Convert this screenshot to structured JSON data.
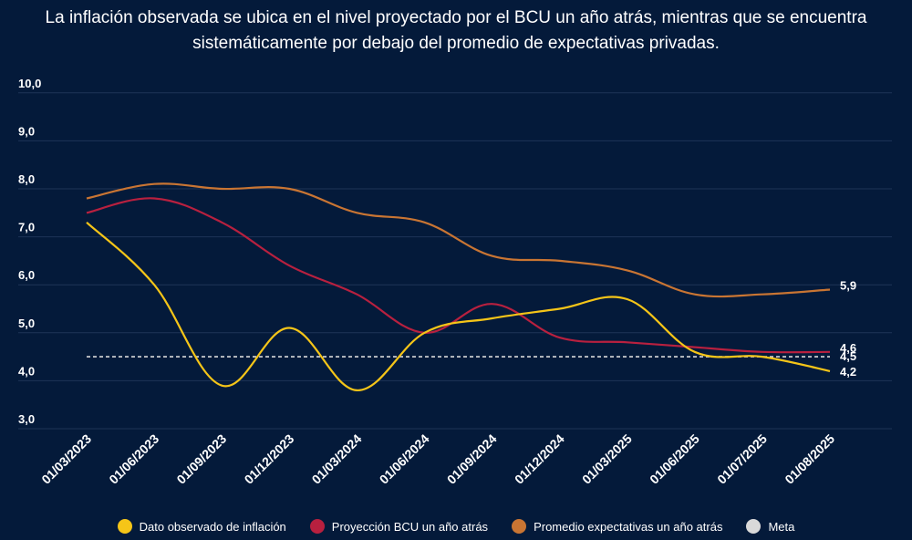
{
  "chart_data": {
    "type": "line",
    "title_lines": [
      "La inflación observada se ubica en el nivel proyectado por el BCU un año atrás, mientras que se encuentra",
      "sistemáticamente por debajo del promedio de expectativas privadas."
    ],
    "categories": [
      "01/03/2023",
      "01/06/2023",
      "01/09/2023",
      "01/12/2023",
      "01/03/2024",
      "01/06/2024",
      "01/09/2024",
      "01/12/2024",
      "01/03/2025",
      "01/06/2025",
      "01/07/2025",
      "01/08/2025"
    ],
    "yticks": [
      "3,0",
      "4,0",
      "5,0",
      "6,0",
      "7,0",
      "8,0",
      "9,0",
      "10,0"
    ],
    "ylim": [
      3,
      10
    ],
    "grid": true,
    "legend_position": "bottom",
    "series": [
      {
        "name": "Dato observado de inflación",
        "color": "#f5c518",
        "values": [
          7.3,
          6.0,
          3.9,
          5.1,
          3.8,
          5.0,
          5.3,
          5.5,
          5.7,
          4.6,
          4.5,
          4.2
        ],
        "end_label": "4,2"
      },
      {
        "name": "Proyección BCU un año atrás",
        "color": "#b8203f",
        "values": [
          7.5,
          7.8,
          7.3,
          6.4,
          5.8,
          5.0,
          5.6,
          4.9,
          4.8,
          4.7,
          4.6,
          4.6
        ],
        "end_label": "4,6"
      },
      {
        "name": "Promedio expectativas un año atrás",
        "color": "#c97533",
        "values": [
          7.8,
          8.1,
          8.0,
          8.0,
          7.5,
          7.3,
          6.6,
          6.5,
          6.3,
          5.8,
          5.8,
          5.9
        ],
        "end_label": "5,9"
      },
      {
        "name": "Meta",
        "color": "#d9d9d9",
        "values": [
          4.5,
          4.5,
          4.5,
          4.5,
          4.5,
          4.5,
          4.5,
          4.5,
          4.5,
          4.5,
          4.5,
          4.5
        ],
        "end_label": "4,5",
        "dashed": true
      }
    ]
  }
}
